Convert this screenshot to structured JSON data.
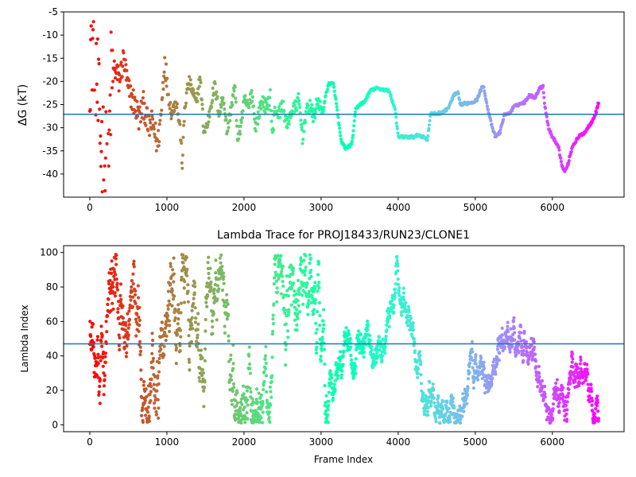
{
  "chart_data": [
    {
      "type": "scatter",
      "title": "",
      "xlabel": "",
      "ylabel": "ΔG (kT)",
      "xlim": [
        -340,
        6930
      ],
      "ylim": [
        -45,
        -5
      ],
      "xticks": [
        "0",
        "1000",
        "2000",
        "3000",
        "4000",
        "5000",
        "6000"
      ],
      "yticks": [
        "-5",
        "-10",
        "-15",
        "-20",
        "-25",
        "-30",
        "-35",
        "-40"
      ],
      "colormap": "rainbow",
      "hline": {
        "y": -27.1,
        "color": "#1f77b4"
      },
      "n_frames": 6600,
      "trace_knots": [
        [
          0,
          -13
        ],
        [
          60,
          -9
        ],
        [
          120,
          -30
        ],
        [
          200,
          -38
        ],
        [
          240,
          -44
        ],
        [
          270,
          -22
        ],
        [
          320,
          -17
        ],
        [
          380,
          -20
        ],
        [
          440,
          -15
        ],
        [
          500,
          -22
        ],
        [
          560,
          -24
        ],
        [
          640,
          -28
        ],
        [
          700,
          -25
        ],
        [
          760,
          -30
        ],
        [
          820,
          -29
        ],
        [
          880,
          -34
        ],
        [
          930,
          -26
        ],
        [
          970,
          -15
        ],
        [
          1010,
          -22
        ],
        [
          1060,
          -27
        ],
        [
          1120,
          -24
        ],
        [
          1170,
          -30
        ],
        [
          1200,
          -38
        ],
        [
          1230,
          -26
        ],
        [
          1280,
          -20
        ],
        [
          1330,
          -22
        ],
        [
          1380,
          -25
        ],
        [
          1430,
          -19
        ],
        [
          1480,
          -31
        ],
        [
          1530,
          -29
        ],
        [
          1580,
          -24
        ],
        [
          1620,
          -21
        ],
        [
          1680,
          -27
        ],
        [
          1730,
          -23
        ],
        [
          1780,
          -31
        ],
        [
          1840,
          -25
        ],
        [
          1880,
          -21
        ],
        [
          1920,
          -33
        ],
        [
          1970,
          -28
        ],
        [
          2010,
          -24
        ],
        [
          2060,
          -26
        ],
        [
          2100,
          -22
        ],
        [
          2150,
          -30
        ],
        [
          2190,
          -27
        ],
        [
          2240,
          -24
        ],
        [
          2290,
          -26
        ],
        [
          2340,
          -23
        ],
        [
          2370,
          -32
        ],
        [
          2400,
          -26
        ],
        [
          2450,
          -27
        ],
        [
          2500,
          -25
        ],
        [
          2560,
          -30
        ],
        [
          2600,
          -27
        ],
        [
          2650,
          -26
        ],
        [
          2710,
          -24
        ],
        [
          2760,
          -32
        ],
        [
          2800,
          -27
        ],
        [
          2860,
          -25
        ],
        [
          2900,
          -28
        ],
        [
          2960,
          -24
        ],
        [
          3020,
          -27
        ],
        [
          3060,
          -23
        ],
        [
          3100,
          -20.5
        ],
        [
          3160,
          -20.5
        ],
        [
          3200,
          -25
        ],
        [
          3260,
          -33
        ],
        [
          3320,
          -34.5
        ],
        [
          3400,
          -33.5
        ],
        [
          3450,
          -26
        ],
        [
          3500,
          -25
        ],
        [
          3560,
          -24.5
        ],
        [
          3640,
          -22
        ],
        [
          3720,
          -21.5
        ],
        [
          3880,
          -22
        ],
        [
          3960,
          -26
        ],
        [
          4000,
          -32
        ],
        [
          4220,
          -32
        ],
        [
          4260,
          -31.5
        ],
        [
          4380,
          -32.5
        ],
        [
          4420,
          -27
        ],
        [
          4500,
          -27
        ],
        [
          4600,
          -26.5
        ],
        [
          4660,
          -25.5
        ],
        [
          4720,
          -23
        ],
        [
          4780,
          -22.5
        ],
        [
          4800,
          -25
        ],
        [
          4960,
          -24.5
        ],
        [
          5020,
          -24
        ],
        [
          5080,
          -21.5
        ],
        [
          5110,
          -21
        ],
        [
          5150,
          -25
        ],
        [
          5220,
          -30
        ],
        [
          5260,
          -32
        ],
        [
          5320,
          -31
        ],
        [
          5380,
          -27
        ],
        [
          5440,
          -27
        ],
        [
          5500,
          -25.5
        ],
        [
          5560,
          -25
        ],
        [
          5640,
          -24.5
        ],
        [
          5700,
          -23
        ],
        [
          5780,
          -23.5
        ],
        [
          5830,
          -21.5
        ],
        [
          5880,
          -21
        ],
        [
          5900,
          -25
        ],
        [
          5950,
          -30
        ],
        [
          6000,
          -32
        ],
        [
          6080,
          -34
        ],
        [
          6120,
          -38
        ],
        [
          6160,
          -39.5
        ],
        [
          6200,
          -38
        ],
        [
          6260,
          -34
        ],
        [
          6340,
          -32
        ],
        [
          6420,
          -31
        ],
        [
          6500,
          -29
        ],
        [
          6560,
          -27
        ],
        [
          6600,
          -24.5
        ]
      ]
    },
    {
      "type": "scatter",
      "title": "Lambda Trace for PROJ18433/RUN23/CLONE1",
      "xlabel": "Frame Index",
      "ylabel": "Lambda Index",
      "xlim": [
        -340,
        6930
      ],
      "ylim": [
        -4,
        104
      ],
      "xticks": [
        "0",
        "1000",
        "2000",
        "3000",
        "4000",
        "5000",
        "6000"
      ],
      "yticks": [
        "0",
        "20",
        "40",
        "60",
        "80",
        "100"
      ],
      "colormap": "rainbow",
      "hline": {
        "y": 47,
        "color": "#1f77b4"
      },
      "n_frames": 6600
    }
  ]
}
